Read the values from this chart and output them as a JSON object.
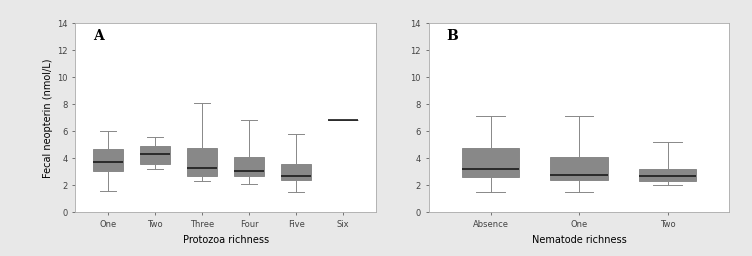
{
  "panel_A": {
    "label": "A",
    "xlabel": "Protozoa richness",
    "ylabel": "Fecal neopterin (nmol/L)",
    "categories": [
      "One",
      "Two",
      "Three",
      "Four",
      "Five",
      "Six"
    ],
    "ylim": [
      0,
      14
    ],
    "yticks": [
      0,
      2,
      4,
      6,
      8,
      10,
      12,
      14
    ],
    "boxes": [
      {
        "q1": 3.1,
        "median": 3.7,
        "q3": 4.7,
        "whislo": 1.6,
        "whishi": 6.0
      },
      {
        "q1": 3.6,
        "median": 4.3,
        "q3": 4.9,
        "whislo": 3.2,
        "whishi": 5.6
      },
      {
        "q1": 2.7,
        "median": 3.3,
        "q3": 4.8,
        "whislo": 2.3,
        "whishi": 8.1
      },
      {
        "q1": 2.7,
        "median": 3.1,
        "q3": 4.1,
        "whislo": 2.1,
        "whishi": 6.8
      },
      {
        "q1": 2.4,
        "median": 2.7,
        "q3": 3.6,
        "whislo": 1.5,
        "whishi": 5.8
      },
      {
        "q1": 6.8,
        "median": 6.8,
        "q3": 6.8,
        "whislo": 6.8,
        "whishi": 6.8
      }
    ]
  },
  "panel_B": {
    "label": "B",
    "xlabel": "Nematode richness",
    "ylabel": "",
    "categories": [
      "Absence",
      "One",
      "Two"
    ],
    "ylim": [
      0,
      14
    ],
    "yticks": [
      0,
      2,
      4,
      6,
      8,
      10,
      12,
      14
    ],
    "boxes": [
      {
        "q1": 2.6,
        "median": 3.2,
        "q3": 4.8,
        "whislo": 1.5,
        "whishi": 7.1
      },
      {
        "q1": 2.4,
        "median": 2.8,
        "q3": 4.1,
        "whislo": 1.5,
        "whishi": 7.1
      },
      {
        "q1": 2.3,
        "median": 2.7,
        "q3": 3.2,
        "whislo": 2.0,
        "whishi": 5.2
      }
    ]
  },
  "box_facecolor": "#c8c8c8",
  "box_edgecolor": "#888888",
  "median_color": "#1a1a1a",
  "whisker_color": "#888888",
  "background_color": "#e8e8e8",
  "panel_bg": "#ffffff",
  "label_fontsize": 9,
  "tick_fontsize": 6,
  "axis_label_fontsize": 7,
  "panel_label_fontsize": 10,
  "fig_width": 7.52,
  "fig_height": 2.56,
  "dpi": 100
}
